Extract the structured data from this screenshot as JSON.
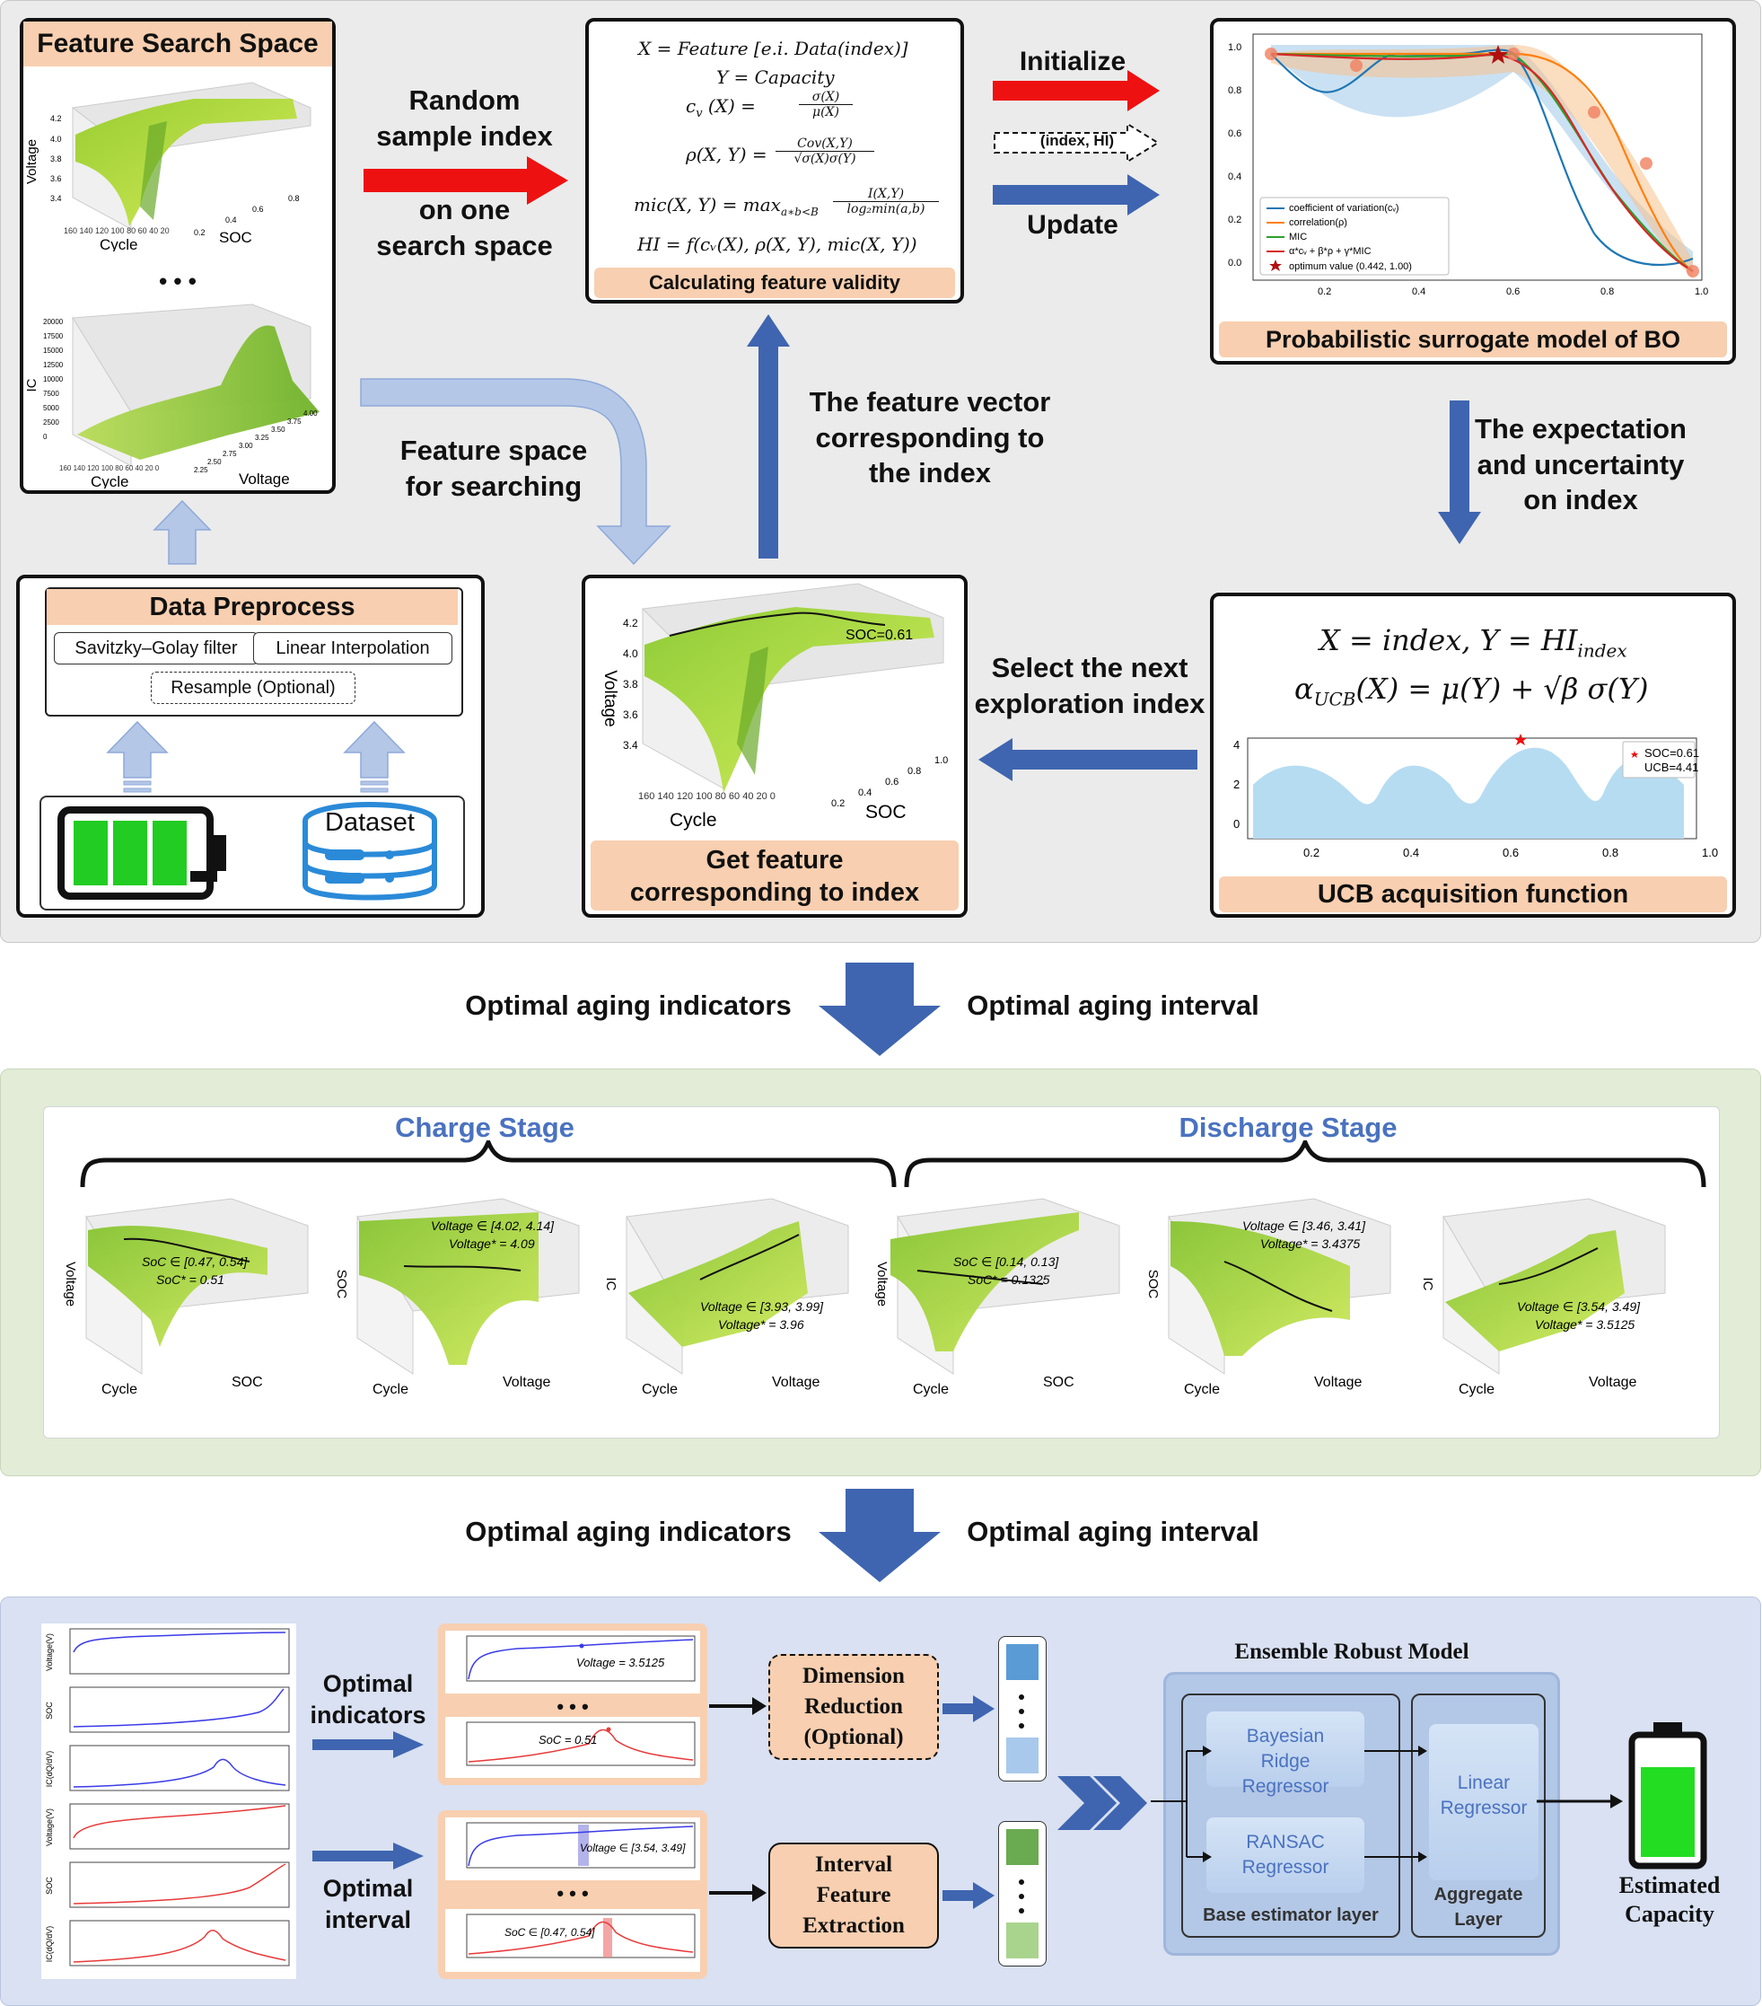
{
  "top": {
    "feature_search_space": {
      "title": "Feature Search Space",
      "ellipsis": "• • •",
      "plot1": {
        "zlabel": "Voltage",
        "xlabel": "Cycle",
        "ylabel": "SOC",
        "zticks": [
          "4.2",
          "4.0",
          "3.8",
          "3.6",
          "3.4"
        ],
        "xticks": "160 140 120 100 80 60 40 20",
        "yticks": [
          "0.2",
          "0.4",
          "0.6",
          "0.8"
        ]
      },
      "plot2": {
        "zlabel": "IC",
        "xlabel": "Cycle",
        "ylabel": "Voltage",
        "zticks": [
          "20000",
          "17500",
          "15000",
          "12500",
          "10000",
          "7500",
          "5000",
          "2500",
          "0"
        ],
        "xticks": "160 140 120 100 80 60 40 20 0",
        "yticks": [
          "2.25",
          "2.50",
          "2.75",
          "3.00",
          "3.25",
          "3.50",
          "3.75",
          "4.00"
        ]
      }
    },
    "random_sample": {
      "line1": "Random",
      "line2": "sample index",
      "line3": "on one",
      "line4": "search space"
    },
    "calc": {
      "title": "Calculating feature validity",
      "eq1": "X = Feature [e.i. Data(index)]",
      "eq2": "Y = Capacity",
      "eq3_lhs": "c",
      "eq3_sub": "v",
      "eq3_rest": "(X) =",
      "eq3_num": "σ(X)",
      "eq3_den": "μ(X)",
      "eq4_lhs": "ρ(X, Y) =",
      "eq4_num": "Cov(X,Y)",
      "eq4_den": "√σ(X)σ(Y)",
      "eq5_lhs": "mic(X, Y) = max",
      "eq5_sub": "a∗b<B",
      "eq5_num": "I(X,Y)",
      "eq5_den": "log₂min(a,b)",
      "eq6": "HI = f(cᵥ(X), ρ(X, Y), mic(X, Y))"
    },
    "arrows_mid": {
      "initialize": "Initialize",
      "index_hi": "(index, HI)",
      "update": "Update"
    },
    "bo": {
      "title": "Probabilistic surrogate model of BO",
      "yticks": [
        "1.0",
        "0.8",
        "0.6",
        "0.4",
        "0.2",
        "0.0"
      ],
      "xticks": [
        "0.2",
        "0.4",
        "0.6",
        "0.8",
        "1.0"
      ],
      "legend": [
        "coefficient of variation(cᵥ)",
        "correlation(ρ)",
        "MIC",
        "α*cᵥ + β*ρ + γ*MIC",
        "optimum value (0.442, 1.00)"
      ],
      "colors": {
        "cv": "#1f77b4",
        "rho": "#ff7f0e",
        "mic": "#2ca02c",
        "combo": "#d62728"
      }
    },
    "expectation": {
      "line1": "The expectation",
      "line2": "and uncertainty",
      "line3": "on index"
    },
    "feature_vector": {
      "line1": "The feature vector",
      "line2": "corresponding to",
      "line3": "the index"
    },
    "feature_space": {
      "line1": "Feature space",
      "line2": "for searching"
    },
    "preprocess": {
      "title": "Data Preprocess",
      "filter": "Savitzky–Golay filter",
      "interp": "Linear Interpolation",
      "resample": "Resample (Optional)",
      "dataset": "Dataset"
    },
    "get_feature": {
      "title_line1": "Get feature",
      "title_line2": "corresponding to index",
      "zlabel": "Voltage",
      "xlabel": "Cycle",
      "ylabel": "SOC",
      "annotation": "SOC=0.61",
      "zticks": [
        "4.2",
        "4.0",
        "3.8",
        "3.6",
        "3.4"
      ],
      "xticks": "160 140 120 100 80 60 40 20 0",
      "yticks": [
        "0.2",
        "0.4",
        "0.6",
        "0.8",
        "1.0"
      ]
    },
    "select_next": {
      "line1": "Select the next",
      "line2": "exploration index"
    },
    "ucb": {
      "title": "UCB acquisition function",
      "eq1": "X = index, Y = HI",
      "eq1_sub": "index",
      "eq2_lhs": "α",
      "eq2_sub": "UCB",
      "eq2_rest": "(X) = μ(Y) + √β σ(Y)",
      "yticks": [
        "4",
        "2",
        "0"
      ],
      "xticks": [
        "0.2",
        "0.4",
        "0.6",
        "0.8",
        "1.0"
      ],
      "legend1": "SOC=0.61",
      "legend2": "UCB=4.41"
    }
  },
  "transition1": {
    "left": "Optimal aging indicators",
    "right": "Optimal aging interval"
  },
  "stages": {
    "charge": "Charge Stage",
    "discharge": "Discharge Stage",
    "plots": [
      {
        "zlabel": "Voltage",
        "xlabel": "Cycle",
        "ylabel": "SOC",
        "ann1": "SoC ∈ [0.47, 0.54]",
        "ann2": "SoC* = 0.51"
      },
      {
        "zlabel": "SOC",
        "xlabel": "Cycle",
        "ylabel": "Voltage",
        "ann1": "Voltage ∈ [4.02, 4.14]",
        "ann2": "Voltage* = 4.09"
      },
      {
        "zlabel": "IC",
        "xlabel": "Cycle",
        "ylabel": "Voltage",
        "ann1": "Voltage ∈ [3.93, 3.99]",
        "ann2": "Voltage* = 3.96"
      },
      {
        "zlabel": "Voltage",
        "xlabel": "Cycle",
        "ylabel": "SOC",
        "ann1": "SoC ∈ [0.14, 0.13]",
        "ann2": "SoC* = 0.1325"
      },
      {
        "zlabel": "SOC",
        "xlabel": "Cycle",
        "ylabel": "Voltage",
        "ann1": "Voltage ∈ [3.46, 3.41]",
        "ann2": "Voltage* = 3.4375"
      },
      {
        "zlabel": "IC",
        "xlabel": "Cycle",
        "ylabel": "Voltage",
        "ann1": "Voltage ∈ [3.54, 3.49]",
        "ann2": "Voltage* = 3.5125"
      }
    ]
  },
  "transition2": {
    "left": "Optimal aging indicators",
    "right": "Optimal aging interval"
  },
  "bottom": {
    "curves_ylabels": [
      "Voltage(V)",
      "SOC",
      "IC(dQ/dV)",
      "Voltage(V)",
      "SOC",
      "IC(dQ/dV)"
    ],
    "optimal_indicators": {
      "line1": "Optimal",
      "line2": "indicators"
    },
    "optimal_interval": {
      "line1": "Optimal",
      "line2": "interval"
    },
    "ind_voltage": "Voltage = 3.5125",
    "ind_soc": "SoC = 0.51",
    "int_voltage": "Voltage ∈ [3.54, 3.49]",
    "int_soc": "SoC ∈ [0.47, 0.54]",
    "ellipsis": "• • •",
    "dim_reduction": {
      "line1": "Dimension",
      "line2": "Reduction",
      "line3": "(Optional)"
    },
    "interval_feature": {
      "line1": "Interval",
      "line2": "Feature",
      "line3": "Extraction"
    },
    "ensemble": {
      "title": "Ensemble Robust Model",
      "bayes": "Bayesian Ridge Regressor",
      "ransac": "RANSAC Regressor",
      "linear": "Linear Regressor",
      "base_layer": "Base estimator layer",
      "aggregate": "Aggregate Layer"
    },
    "estimated": {
      "line1": "Estimated",
      "line2": "Capacity"
    }
  }
}
